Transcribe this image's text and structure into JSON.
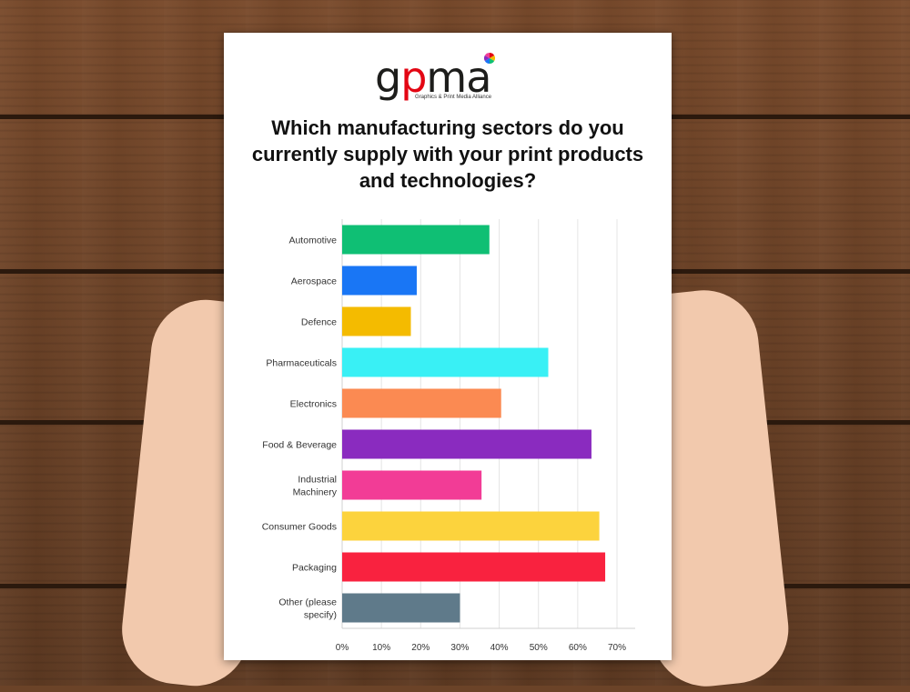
{
  "logo": {
    "text_g": "g",
    "text_p": "p",
    "text_ma": "ma",
    "tagline": "Graphics & Print Media Alliance"
  },
  "question": "Which manufacturing sectors do you currently supply with your print products and technologies?",
  "chart_data": {
    "type": "bar",
    "orientation": "horizontal",
    "title": "Which manufacturing sectors do you currently supply with your print products and technologies?",
    "categories": [
      [
        "Automotive"
      ],
      [
        "Aerospace"
      ],
      [
        "Defence"
      ],
      [
        "Pharmaceuticals"
      ],
      [
        "Electronics"
      ],
      [
        "Food & Beverage"
      ],
      [
        "Industrial",
        "Machinery"
      ],
      [
        "Consumer Goods"
      ],
      [
        "Packaging"
      ],
      [
        "Other (please",
        "specify)"
      ]
    ],
    "values": [
      37.5,
      19,
      17.5,
      52.5,
      40.5,
      63.5,
      35.5,
      65.5,
      67,
      30
    ],
    "colors": [
      "#0fbf74",
      "#1976f5",
      "#f4bb00",
      "#39f0f5",
      "#fb8a52",
      "#8a2bbf",
      "#f23c96",
      "#fcd33d",
      "#f9223f",
      "#5f7a8a"
    ],
    "xlim": [
      0,
      70
    ],
    "xticks": [
      "0%",
      "10%",
      "20%",
      "30%",
      "40%",
      "50%",
      "60%",
      "70%"
    ],
    "grid": true
  }
}
